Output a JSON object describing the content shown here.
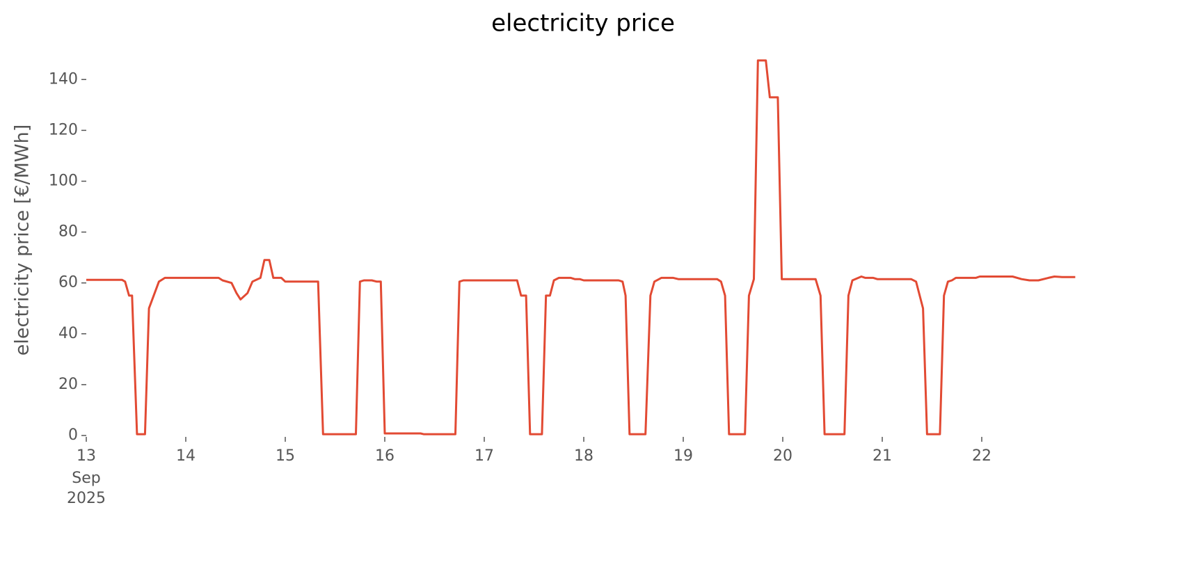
{
  "chart_data": {
    "type": "line",
    "title": "electricity price",
    "ylabel": "electricity price [€/MWh]",
    "x": [
      13.0,
      13.36,
      13.39,
      13.43,
      13.46,
      13.51,
      13.59,
      13.63,
      13.73,
      13.79,
      14.33,
      14.37,
      14.46,
      14.51,
      14.55,
      14.62,
      14.67,
      14.75,
      14.79,
      14.84,
      14.88,
      14.96,
      15.0,
      15.33,
      15.38,
      15.71,
      15.75,
      15.79,
      15.87,
      15.92,
      15.96,
      16.0,
      16.36,
      16.39,
      16.71,
      16.75,
      16.79,
      17.33,
      17.37,
      17.42,
      17.46,
      17.58,
      17.62,
      17.66,
      17.7,
      17.75,
      17.87,
      17.91,
      17.96,
      18.0,
      18.35,
      18.39,
      18.42,
      18.46,
      18.62,
      18.67,
      18.71,
      18.78,
      18.9,
      18.95,
      19.34,
      19.38,
      19.42,
      19.46,
      19.62,
      19.66,
      19.71,
      19.75,
      19.83,
      19.87,
      19.95,
      19.99,
      20.33,
      20.38,
      20.42,
      20.62,
      20.66,
      20.7,
      20.79,
      20.83,
      20.91,
      20.95,
      21.29,
      21.34,
      21.41,
      21.45,
      21.58,
      21.62,
      21.66,
      21.7,
      21.74,
      21.94,
      21.98,
      22.31,
      22.4,
      22.48,
      22.57,
      22.67,
      22.73,
      22.81,
      22.94
    ],
    "series": [
      {
        "name": "electricity price",
        "color": "#e24a33",
        "values": [
          61.2,
          61.2,
          60.5,
          55,
          55,
          0.5,
          0.5,
          50,
          60.5,
          62,
          62,
          61,
          60,
          56,
          53.5,
          56,
          60.5,
          62,
          69,
          69,
          62,
          62,
          60.5,
          60.5,
          0.5,
          0.5,
          60.5,
          61,
          61,
          60.5,
          60.5,
          0.8,
          0.8,
          0.5,
          0.5,
          60.5,
          61,
          61,
          55,
          55,
          0.5,
          0.5,
          55,
          55,
          61,
          62,
          62,
          61.5,
          61.5,
          61,
          61,
          60.5,
          55,
          0.5,
          0.5,
          55,
          60.5,
          62,
          62,
          61.5,
          61.5,
          60.5,
          55,
          0.5,
          0.5,
          55,
          61.5,
          147.5,
          147.5,
          133,
          133,
          61.5,
          61.5,
          55,
          0.5,
          0.5,
          55,
          61,
          62.5,
          62,
          62,
          61.5,
          61.5,
          60.5,
          50,
          0.5,
          0.5,
          55,
          60.5,
          61,
          62,
          62,
          62.5,
          62.5,
          61.5,
          61,
          61,
          62,
          62.5,
          62.3,
          62.3
        ]
      }
    ],
    "xlim": [
      13,
      22.958
    ],
    "xticks": [
      13,
      14,
      15,
      16,
      17,
      18,
      19,
      20,
      21,
      22
    ],
    "x_month": "Sep",
    "x_year": "2025",
    "ylim": [
      -6.85,
      154.85
    ],
    "yticks": [
      0,
      20,
      40,
      60,
      80,
      100,
      120,
      140
    ],
    "grid": false
  }
}
